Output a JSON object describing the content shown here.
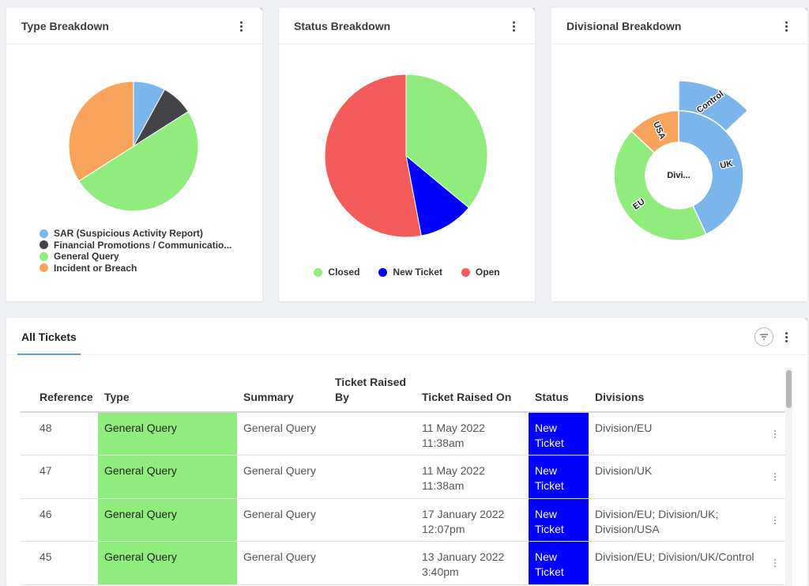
{
  "colors": {
    "sar": "#7cb5ec",
    "financial": "#434348",
    "general": "#90ed7d",
    "incident": "#f7a35c",
    "closed": "#90ed7d",
    "new_ticket": "#0000ff",
    "open": "#f45b5b",
    "uk": "#7cb5ec",
    "eu": "#90ed7d",
    "usa": "#f7a35c",
    "control": "#7cb5ec"
  },
  "type_card": {
    "title": "Type Breakdown",
    "legend": [
      {
        "label": "SAR (Suspicious Activity Report)",
        "color": "#7cb5ec"
      },
      {
        "label": "Financial Promotions / Communicatio...",
        "color": "#434348"
      },
      {
        "label": "General Query",
        "color": "#90ed7d"
      },
      {
        "label": "Incident or Breach",
        "color": "#f7a35c"
      }
    ]
  },
  "status_card": {
    "title": "Status Breakdown",
    "legend": [
      {
        "label": "Closed",
        "color": "#90ed7d"
      },
      {
        "label": "New Ticket",
        "color": "#0000ff"
      },
      {
        "label": "Open",
        "color": "#f45b5b"
      }
    ]
  },
  "division_card": {
    "title": "Divisional Breakdown",
    "center_label": "Divi..."
  },
  "chart_data": [
    {
      "type": "pie",
      "title": "Type Breakdown",
      "categories": [
        "SAR (Suspicious Activity Report)",
        "Financial Promotions / Communicatio...",
        "General Query",
        "Incident or Breach"
      ],
      "values": [
        8,
        8,
        50,
        34
      ]
    },
    {
      "type": "pie",
      "title": "Status Breakdown",
      "categories": [
        "Closed",
        "New Ticket",
        "Open"
      ],
      "values": [
        36,
        11,
        53
      ]
    },
    {
      "type": "pie",
      "title": "Divisional Breakdown",
      "subtype": "sunburst",
      "center": "Divi...",
      "categories": [
        "UK",
        "EU",
        "USA"
      ],
      "values": [
        43,
        44,
        13
      ],
      "children": [
        {
          "parent": "UK",
          "label": "Control",
          "value": 13
        }
      ]
    }
  ],
  "tickets": {
    "tab_label": "All Tickets",
    "columns": [
      "Reference",
      "Type",
      "Summary",
      "Ticket Raised By",
      "Ticket Raised On",
      "Status",
      "Divisions"
    ],
    "rows": [
      {
        "reference": "48",
        "type": "General Query",
        "summary": "General Query",
        "raised_by": "",
        "raised_on": "11 May 2022 11:38am",
        "status": "New Ticket",
        "divisions": "Division/EU"
      },
      {
        "reference": "47",
        "type": "General Query",
        "summary": "General Query",
        "raised_by": "",
        "raised_on": "11 May 2022 11:38am",
        "status": "New Ticket",
        "divisions": "Division/UK"
      },
      {
        "reference": "46",
        "type": "General Query",
        "summary": "General Query",
        "raised_by": "",
        "raised_on": "17 January 2022 12:07pm",
        "status": "New Ticket",
        "divisions": "Division/EU; Division/UK; Division/USA"
      },
      {
        "reference": "45",
        "type": "General Query",
        "summary": "General Query",
        "raised_by": "",
        "raised_on": "13 January 2022 3:40pm",
        "status": "New Ticket",
        "divisions": "Division/EU; Division/UK/Control"
      }
    ]
  }
}
